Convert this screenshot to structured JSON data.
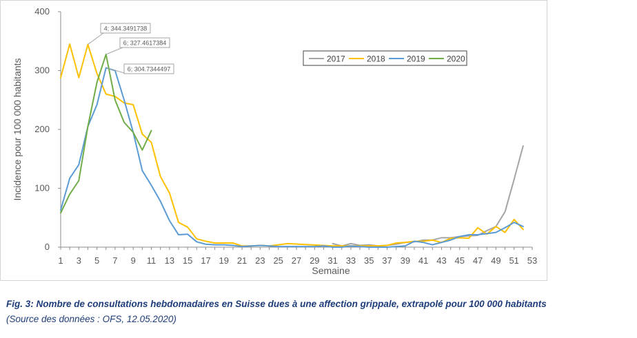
{
  "chart_data": {
    "type": "line",
    "title": "",
    "xlabel": "Semaine",
    "ylabel": "Incidence pour 100 000 habitants",
    "xlim": [
      1,
      53
    ],
    "ylim": [
      0,
      400
    ],
    "x_ticks": [
      "1",
      "3",
      "5",
      "7",
      "9",
      "11",
      "13",
      "15",
      "17",
      "19",
      "21",
      "23",
      "25",
      "27",
      "29",
      "31",
      "33",
      "35",
      "37",
      "39",
      "41",
      "43",
      "45",
      "47",
      "49",
      "51",
      "53"
    ],
    "y_ticks": [
      "0",
      "100",
      "200",
      "300",
      "400"
    ],
    "grid": false,
    "legend_position": "top-right",
    "series": [
      {
        "name": "2017",
        "color": "#a5a5a5",
        "points": [
          [
            31,
            6
          ],
          [
            32,
            2
          ],
          [
            33,
            6
          ],
          [
            34,
            3
          ],
          [
            35,
            4
          ],
          [
            36,
            2
          ],
          [
            37,
            3
          ],
          [
            38,
            5
          ],
          [
            39,
            8
          ],
          [
            40,
            9
          ],
          [
            41,
            12
          ],
          [
            42,
            12
          ],
          [
            43,
            16
          ],
          [
            44,
            16
          ],
          [
            45,
            18
          ],
          [
            46,
            19
          ],
          [
            47,
            20
          ],
          [
            48,
            28
          ],
          [
            49,
            35
          ],
          [
            50,
            60
          ],
          [
            51,
            115
          ],
          [
            52,
            172
          ]
        ]
      },
      {
        "name": "2018",
        "color": "#ffc000",
        "points": [
          [
            1,
            288
          ],
          [
            2,
            345
          ],
          [
            3,
            288
          ],
          [
            4,
            344.3491738
          ],
          [
            5,
            295
          ],
          [
            6,
            260
          ],
          [
            7,
            256
          ],
          [
            8,
            245
          ],
          [
            9,
            242
          ],
          [
            10,
            192
          ],
          [
            11,
            178
          ],
          [
            12,
            120
          ],
          [
            13,
            92
          ],
          [
            14,
            42
          ],
          [
            15,
            34
          ],
          [
            16,
            14
          ],
          [
            17,
            10
          ],
          [
            18,
            7
          ],
          [
            19,
            7
          ],
          [
            20,
            7
          ],
          [
            21,
            2
          ],
          [
            22,
            2
          ],
          [
            23,
            3
          ],
          [
            24,
            2
          ],
          [
            25,
            4
          ],
          [
            26,
            6
          ],
          [
            31,
            2
          ],
          [
            32,
            2
          ],
          [
            33,
            2
          ],
          [
            34,
            2
          ],
          [
            35,
            2
          ],
          [
            36,
            2
          ],
          [
            37,
            3
          ],
          [
            38,
            7
          ],
          [
            39,
            8
          ],
          [
            40,
            10
          ],
          [
            41,
            10
          ],
          [
            42,
            12
          ],
          [
            43,
            8
          ],
          [
            44,
            15
          ],
          [
            45,
            16
          ],
          [
            46,
            15
          ],
          [
            47,
            33
          ],
          [
            48,
            22
          ],
          [
            49,
            35
          ],
          [
            50,
            25
          ],
          [
            51,
            47
          ],
          [
            52,
            30
          ]
        ]
      },
      {
        "name": "2019",
        "color": "#5b9bd5",
        "points": [
          [
            1,
            63
          ],
          [
            2,
            117
          ],
          [
            3,
            140
          ],
          [
            4,
            205
          ],
          [
            5,
            242
          ],
          [
            6,
            304.7344497
          ],
          [
            7,
            300
          ],
          [
            8,
            250
          ],
          [
            9,
            195
          ],
          [
            10,
            130
          ],
          [
            11,
            105
          ],
          [
            12,
            78
          ],
          [
            13,
            45
          ],
          [
            14,
            21
          ],
          [
            15,
            22
          ],
          [
            16,
            9
          ],
          [
            17,
            5
          ],
          [
            18,
            4
          ],
          [
            19,
            4
          ],
          [
            20,
            3
          ],
          [
            21,
            1
          ],
          [
            22,
            2
          ],
          [
            23,
            3
          ],
          [
            24,
            2
          ],
          [
            25,
            1
          ],
          [
            26,
            1
          ],
          [
            27,
            1
          ],
          [
            28,
            1
          ],
          [
            29,
            1
          ],
          [
            30,
            2
          ],
          [
            31,
            0
          ],
          [
            32,
            0
          ],
          [
            33,
            2
          ],
          [
            34,
            1
          ],
          [
            35,
            0
          ],
          [
            36,
            0
          ],
          [
            37,
            0
          ],
          [
            38,
            1
          ],
          [
            39,
            2
          ],
          [
            40,
            10
          ],
          [
            41,
            8
          ],
          [
            42,
            4
          ],
          [
            43,
            8
          ],
          [
            44,
            12
          ],
          [
            45,
            18
          ],
          [
            46,
            21
          ],
          [
            47,
            21
          ],
          [
            48,
            23
          ],
          [
            49,
            25
          ],
          [
            50,
            33
          ],
          [
            51,
            42
          ],
          [
            52,
            35
          ]
        ]
      },
      {
        "name": "2020",
        "color": "#70ad47",
        "points": [
          [
            1,
            58
          ],
          [
            2,
            90
          ],
          [
            3,
            113
          ],
          [
            4,
            205
          ],
          [
            5,
            280
          ],
          [
            6,
            327.4617384
          ],
          [
            7,
            250
          ],
          [
            8,
            212
          ],
          [
            9,
            195
          ],
          [
            10,
            165
          ],
          [
            11,
            198
          ]
        ]
      }
    ],
    "annotations": [
      {
        "text": "4; 344.3491738",
        "series": "2018",
        "x": 4,
        "y": 344.3491738
      },
      {
        "text": "6; 327.4617384",
        "series": "2020",
        "x": 6,
        "y": 327.4617384
      },
      {
        "text": "6; 304.7344497",
        "series": "2019",
        "x": 6,
        "y": 304.7344497
      }
    ]
  },
  "caption": {
    "title": "Fig. 3: Nombre de consultations hebdomadaires en Suisse dues à une affection grippale, extrapolé pour 100 000 habitants",
    "source": "(Source des données : OFS, 12.05.2020)"
  }
}
